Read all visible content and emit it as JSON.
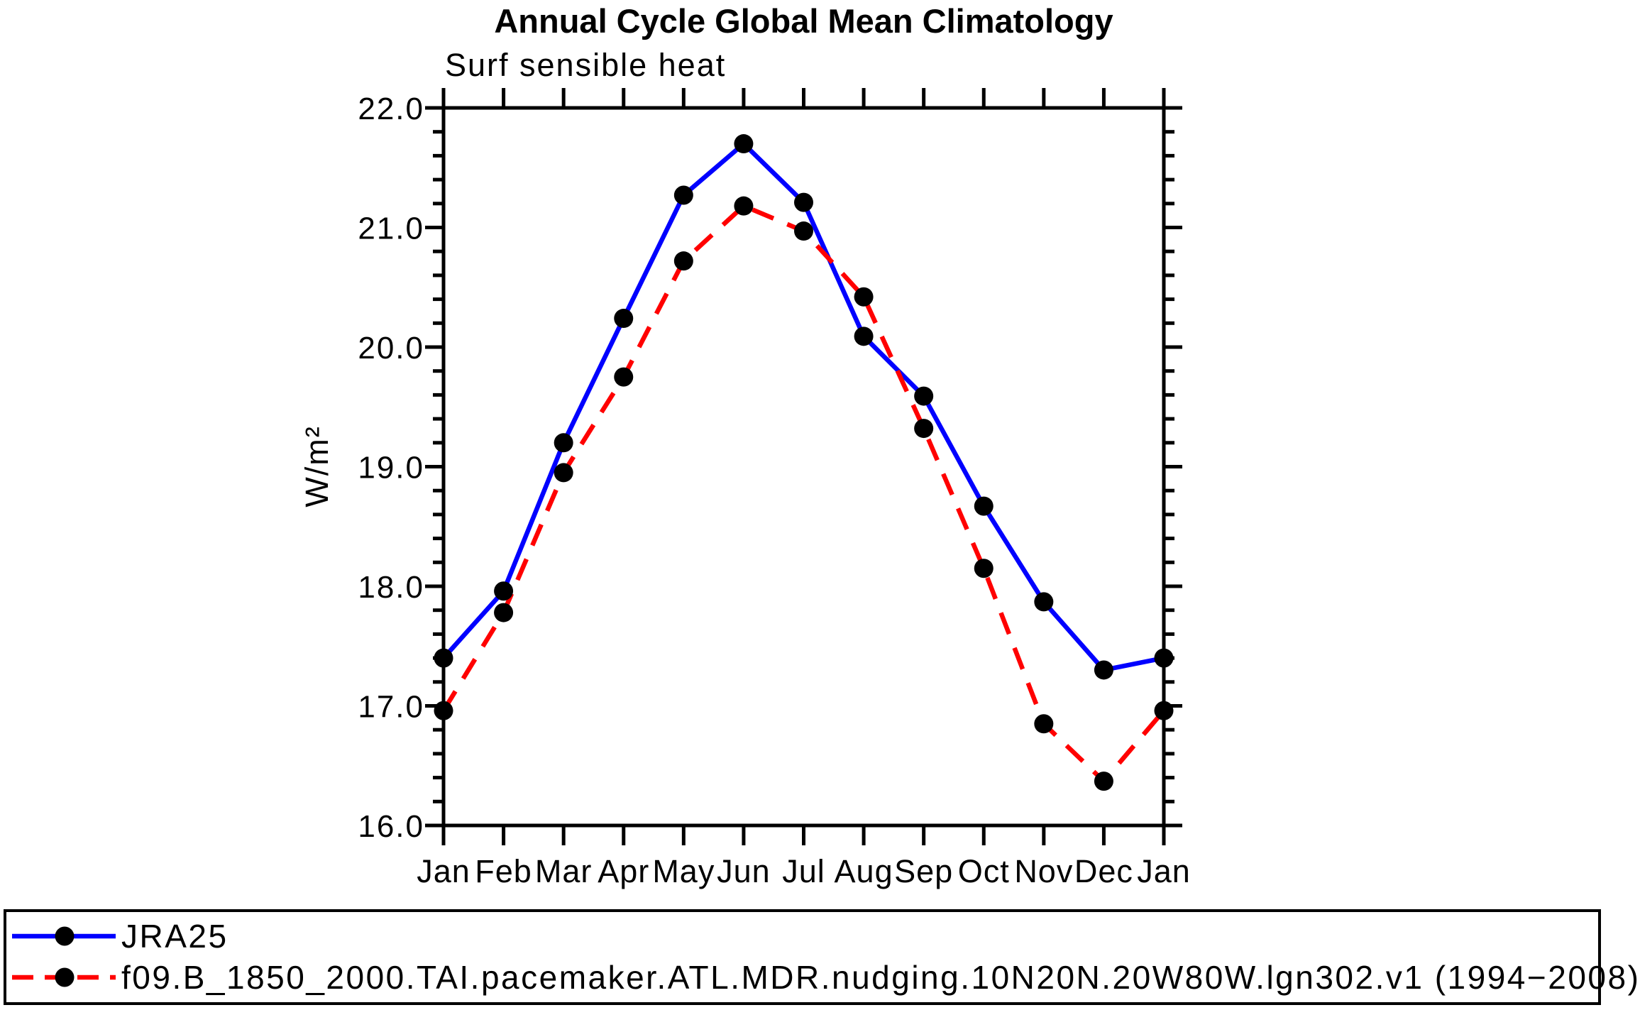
{
  "page": {
    "background": "#ffffff"
  },
  "chart": {
    "title": "Annual Cycle Global Mean Climatology",
    "subtitle": "Surf sensible heat",
    "ylabel": "W/m²",
    "axis_color": "#000000",
    "marker_color": "#000000"
  },
  "chart_data": {
    "type": "line",
    "title": "Annual Cycle Global Mean Climatology",
    "subtitle": "Surf sensible heat",
    "xlabel": "",
    "ylabel": "W/m²",
    "categories": [
      "Jan",
      "Feb",
      "Mar",
      "Apr",
      "May",
      "Jun",
      "Jul",
      "Aug",
      "Sep",
      "Oct",
      "Nov",
      "Dec",
      "Jan"
    ],
    "series": [
      {
        "name": "JRA25",
        "color": "#0000ff",
        "line_style": "solid",
        "marker": "filled-circle",
        "values": [
          17.4,
          17.96,
          19.2,
          20.24,
          21.27,
          21.7,
          21.21,
          20.09,
          19.59,
          18.67,
          17.87,
          17.3,
          17.4
        ]
      },
      {
        "name": "f09.B_1850_2000.TAI.pacemaker.ATL.MDR.nudging.10N20N.20W80W.lgn302.v1 (1994−2008)",
        "color": "#ff0000",
        "line_style": "dashed",
        "marker": "filled-circle",
        "values": [
          16.96,
          17.78,
          18.95,
          19.75,
          20.72,
          21.18,
          20.97,
          20.42,
          19.32,
          18.15,
          16.85,
          16.37,
          16.96
        ]
      }
    ],
    "ylim": [
      16.0,
      22.0
    ],
    "ytick_major": [
      16.0,
      17.0,
      18.0,
      19.0,
      20.0,
      21.0,
      22.0
    ],
    "ytick_minor_step": 0.2,
    "grid": false,
    "legend_position": "bottom-box"
  }
}
